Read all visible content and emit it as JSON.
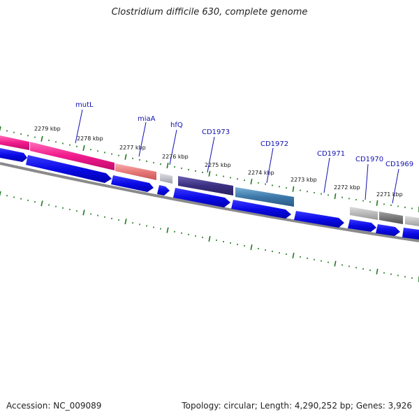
{
  "title": "Clostridium difficile 630, complete genome",
  "accession": "Accession: NC_009089",
  "summary": "Topology: circular; Length: 4,290,252 bp; Genes: 3,926",
  "colors": {
    "background": "#ffffff",
    "backbone": "#8a8a8a",
    "tick": "#1f7a1f",
    "gene_label": "#1010b0",
    "cds_arrow": "#0a0ae6",
    "kbp_label": "#111111"
  },
  "kbp_labels": [
    "2279 kbp",
    "2278 kbp",
    "2277 kbp",
    "2276 kbp",
    "2275 kbp",
    "2274 kbp",
    "2273 kbp",
    "2272 kbp",
    "2271 kbp"
  ],
  "gene_labels": [
    "mutL",
    "miaA",
    "hfQ",
    "CD1973",
    "CD1972",
    "CD1971",
    "CD1970",
    "CD1969"
  ],
  "feature_colors": {
    "mutL_left": "#e8137e",
    "mutL": "#f01a8c",
    "miaA": "#e87878",
    "hfQ": "#b8b8c0",
    "CD1973": "#3a2f80",
    "CD1972": "#3d78a8",
    "CD1970": "#a8a8a8",
    "CD1969": "#707070",
    "edge": "#b0b0b0"
  }
}
